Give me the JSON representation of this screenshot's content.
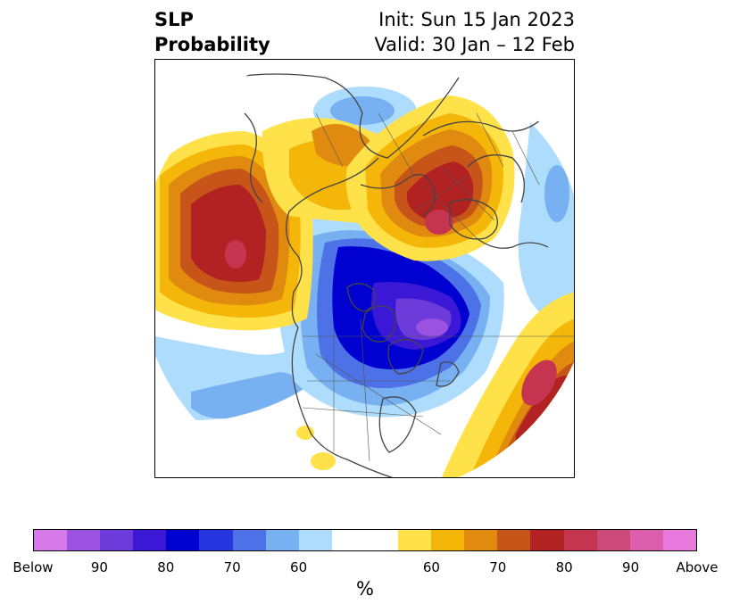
{
  "title": {
    "left_line1": "SLP",
    "left_line2": "Probability",
    "right_line1": "Init: Sun 15 Jan 2023",
    "right_line2": "Valid: 30 Jan – 12 Feb"
  },
  "colorbar": {
    "colors": [
      "#d57ae8",
      "#9b52e0",
      "#6c3bd9",
      "#3a18d6",
      "#0000d0",
      "#2536de",
      "#4d72e8",
      "#78b1f2",
      "#aedcfc",
      "#ffffff",
      "#ffffff",
      "#ffe24a",
      "#f5b60a",
      "#e08a10",
      "#c75418",
      "#b22222",
      "#c53550",
      "#cc4a7a",
      "#dc5fad",
      "#e879dc"
    ],
    "tick_labels": [
      "Below",
      "90",
      "80",
      "70",
      "60",
      "60",
      "70",
      "80",
      "90",
      "Above"
    ],
    "unit_label": "%"
  },
  "map": {
    "projection": "north-polar-stereographic",
    "variable": "sea-level-pressure-probability"
  }
}
